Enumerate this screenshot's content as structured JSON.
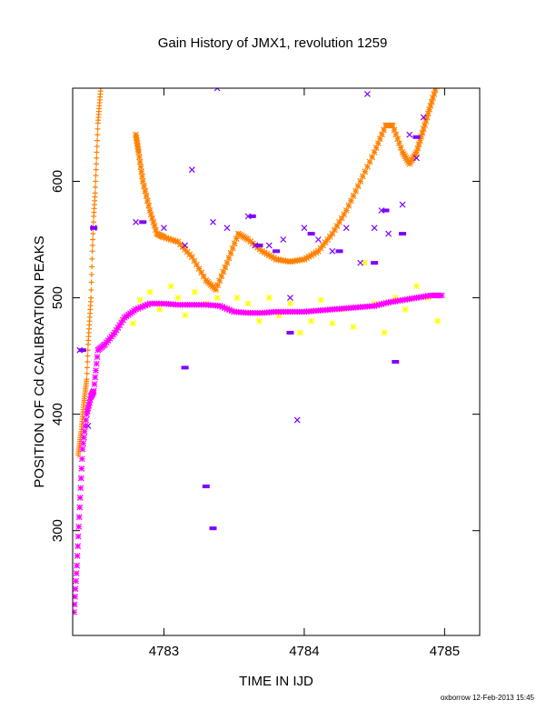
{
  "chart_data": {
    "type": "scatter",
    "title": "Gain History of JMX1, revolution 1259",
    "xlabel": "TIME IN IJD",
    "ylabel": "POSITION OF Cd CALIBRATION PEAKS",
    "xlim": [
      4782.35,
      4785.25
    ],
    "ylim": [
      210,
      680
    ],
    "x_ticks": [
      4783,
      4784,
      4785
    ],
    "x_tick_labels": [
      "4783",
      "4784",
      "4785"
    ],
    "y_ticks": [
      300,
      400,
      500,
      600
    ],
    "y_tick_labels": [
      "300",
      "400",
      "500",
      "600"
    ],
    "grid": false,
    "legend": "none",
    "footer": "oxborrow 12-Feb-2013 15:45",
    "series": [
      {
        "color": "#ff8000",
        "marker": "plus",
        "x": [
          4782.39,
          4782.4,
          4782.41,
          4782.42,
          4782.43,
          4782.44,
          4782.45,
          4782.46,
          4782.47,
          4782.48,
          4782.49,
          4782.5,
          4782.51,
          4782.52,
          4782.53,
          4782.54,
          4782.55
        ],
        "values": [
          365,
          375,
          385,
          398,
          410,
          420,
          430,
          460,
          480,
          500,
          540,
          570,
          590,
          620,
          650,
          665,
          680
        ]
      },
      {
        "color": "#ff8000",
        "marker": "star",
        "x": [
          4782.8,
          4782.82,
          4782.85,
          4782.9,
          4782.95,
          4783.0,
          4783.1,
          4783.2,
          4783.3,
          4783.37,
          4783.45,
          4783.53,
          4783.6,
          4783.7,
          4783.8,
          4783.9,
          4784.0,
          4784.1,
          4784.2,
          4784.3,
          4784.4,
          4784.5,
          4784.58,
          4784.63,
          4784.7,
          4784.75,
          4784.8,
          4784.85,
          4784.9,
          4784.95
        ],
        "values": [
          640,
          625,
          600,
          575,
          555,
          552,
          548,
          535,
          515,
          507,
          530,
          555,
          550,
          540,
          533,
          531,
          533,
          540,
          555,
          575,
          600,
          625,
          648,
          648,
          625,
          615,
          625,
          645,
          665,
          685
        ]
      },
      {
        "color": "#ffff00",
        "marker": "star",
        "x": [
          4782.65,
          4782.7,
          4782.78,
          4782.83,
          4782.9,
          4782.97,
          4783.05,
          4783.1,
          4783.15,
          4783.22,
          4783.3,
          4783.38,
          4783.45,
          4783.52,
          4783.6,
          4783.68,
          4783.75,
          4783.82,
          4783.9,
          4783.97,
          4784.05,
          4784.12,
          4784.2,
          4784.27,
          4784.35,
          4784.43,
          4784.5,
          4784.57,
          4784.65,
          4784.72,
          4784.8,
          4784.88,
          4784.95
        ],
        "values": [
          470,
          480,
          478,
          498,
          505,
          490,
          510,
          500,
          485,
          505,
          495,
          500,
          490,
          500,
          495,
          480,
          500,
          485,
          495,
          470,
          480,
          498,
          478,
          490,
          475,
          530,
          495,
          470,
          500,
          490,
          510,
          500,
          480
        ]
      },
      {
        "color": "#8000ff",
        "marker": "cross",
        "x": [
          4782.4,
          4782.43,
          4782.46,
          4782.5,
          4782.8,
          4783.0,
          4783.15,
          4783.2,
          4783.35,
          4783.38,
          4783.45,
          4783.6,
          4783.65,
          4783.75,
          4783.85,
          4783.9,
          4783.95,
          4784.0,
          4784.1,
          4784.2,
          4784.3,
          4784.4,
          4784.45,
          4784.5,
          4784.55,
          4784.6,
          4784.7,
          4784.75,
          4784.8,
          4784.85
        ],
        "values": [
          455,
          380,
          390,
          560,
          565,
          560,
          545,
          610,
          565,
          680,
          560,
          570,
          545,
          545,
          550,
          500,
          395,
          560,
          550,
          540,
          560,
          530,
          675,
          560,
          575,
          555,
          580,
          640,
          620,
          655
        ]
      },
      {
        "color": "#8000ff",
        "marker": "bar",
        "x": [
          4782.42,
          4782.5,
          4782.85,
          4783.15,
          4783.3,
          4783.35,
          4783.63,
          4783.68,
          4783.8,
          4783.9,
          4784.05,
          4784.25,
          4784.5,
          4784.58,
          4784.65,
          4784.7,
          4784.8
        ],
        "values": [
          455,
          560,
          565,
          440,
          338,
          302,
          570,
          545,
          540,
          470,
          555,
          540,
          530,
          575,
          445,
          555,
          638
        ]
      },
      {
        "color": "#ff00ff",
        "marker": "star",
        "x": [
          4782.36,
          4782.38,
          4782.4,
          4782.42,
          4782.45,
          4782.48,
          4782.5,
          4782.53,
          4782.58,
          4782.65,
          4782.72,
          4782.8,
          4782.9,
          4783.0,
          4783.1,
          4783.2,
          4783.3,
          4783.4,
          4783.5,
          4783.6,
          4783.7,
          4783.8,
          4783.9,
          4784.0,
          4784.1,
          4784.2,
          4784.3,
          4784.4,
          4784.5,
          4784.6,
          4784.7,
          4784.8,
          4784.9,
          4784.98
        ],
        "values": [
          230,
          270,
          320,
          370,
          400,
          415,
          420,
          455,
          460,
          470,
          483,
          490,
          495,
          495,
          494,
          494,
          494,
          493,
          488,
          487,
          487,
          488,
          488,
          488,
          489,
          490,
          491,
          492,
          493,
          496,
          498,
          500,
          502,
          502
        ]
      }
    ]
  }
}
